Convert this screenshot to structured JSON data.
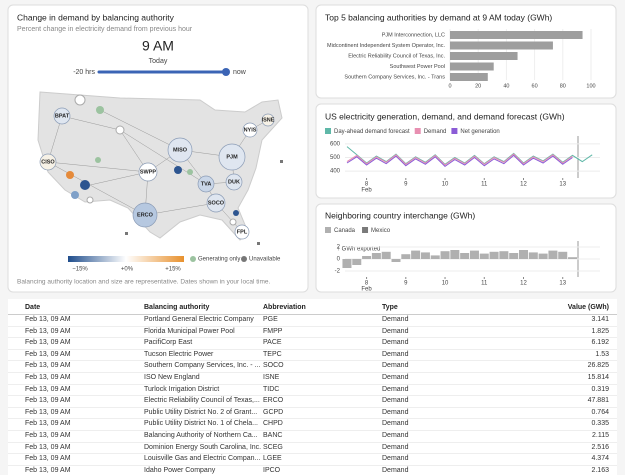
{
  "map_panel": {
    "title": "Change in demand by balancing authority",
    "subtitle": "Percent change in electricity demand from previous hour",
    "hour": "9 AM",
    "day": "Today",
    "slider_start": "-20 hrs",
    "slider_end": "now",
    "labels": [
      "BPAT",
      "CISO",
      "SWPP",
      "MISO",
      "PJM",
      "NYIS",
      "ISNE",
      "TVA",
      "DUK",
      "SOCO",
      "ERCO",
      "FPL"
    ],
    "legend": [
      "−15%",
      "+0%",
      "+15%",
      "Generating only",
      "Unavailable"
    ],
    "footnote": "Balancing authority location and size are representative. Dates shown in your local time."
  },
  "top5": {
    "title": "Top 5 balancing authorities by demand at 9 AM today (GWh)",
    "categories": [
      "PJM Interconnection, LLC",
      "Midcontinent Independent System Operator, Inc.",
      "Electric Reliability Council of Texas, Inc.",
      "Southwest Power Pool",
      "Southern Company Services, Inc. - Trans"
    ],
    "values": [
      94,
      73,
      47.9,
      31,
      26.8
    ],
    "color": "#9e9e9e",
    "xlim": [
      0,
      100
    ],
    "xticks": [
      0,
      20,
      40,
      60,
      80,
      100
    ]
  },
  "us_chart": {
    "type": "line",
    "title": "US electricity generation, demand, and demand forecast (GWh)",
    "xlim": [
      7.45,
      13.95
    ],
    "xticks": [
      8,
      9,
      10,
      11,
      12,
      13
    ],
    "month_label": "Feb",
    "ylim": [
      350,
      650
    ],
    "yticks": [
      400,
      500,
      600
    ],
    "x": [
      7.5,
      7.75,
      8,
      8.25,
      8.5,
      8.75,
      9,
      9.25,
      9.5,
      9.75,
      10,
      10.25,
      10.5,
      10.75,
      11,
      11.25,
      11.5,
      11.75,
      12,
      12.25,
      12.5,
      12.75,
      13,
      13.25,
      13.5,
      13.75
    ],
    "series": [
      {
        "name": "Day-ahead demand forecast",
        "color": "#5fb8a8",
        "values": [
          580,
          520,
          460,
          510,
          470,
          525,
          455,
          505,
          465,
          520,
          450,
          500,
          460,
          515,
          455,
          505,
          470,
          530,
          460,
          510,
          475,
          525,
          465,
          515,
          470,
          520
        ]
      },
      {
        "name": "Demand",
        "color": "#e88fb1",
        "values": [
          470,
          515,
          455,
          505,
          465,
          520,
          450,
          500,
          460,
          515,
          445,
          495,
          455,
          510,
          450,
          500,
          465,
          525,
          455,
          505,
          470,
          520,
          460,
          510,
          null,
          null
        ]
      },
      {
        "name": "Net generation",
        "color": "#8b5cd6",
        "values": [
          460,
          505,
          445,
          495,
          455,
          510,
          440,
          490,
          450,
          505,
          435,
          485,
          445,
          500,
          440,
          490,
          455,
          515,
          445,
          495,
          460,
          510,
          450,
          500,
          null,
          null
        ]
      }
    ]
  },
  "interchange": {
    "type": "bar",
    "title": "Neighboring country interchange (GWh)",
    "legend": [
      {
        "name": "Canada",
        "color": "#b0b0b0"
      },
      {
        "name": "Mexico",
        "color": "#7a7a7a"
      }
    ],
    "annotation": "↑ GWh exported",
    "xlim": [
      7.45,
      13.95
    ],
    "xticks": [
      8,
      9,
      10,
      11,
      12,
      13
    ],
    "month_label": "Feb",
    "ylim": [
      -3,
      3
    ],
    "yticks": [
      2,
      0,
      -2
    ],
    "x": [
      7.5,
      7.75,
      8,
      8.25,
      8.5,
      8.75,
      9,
      9.25,
      9.5,
      9.75,
      10,
      10.25,
      10.5,
      10.75,
      11,
      11.25,
      11.5,
      11.75,
      12,
      12.25,
      12.5,
      12.75,
      13,
      13.25,
      13.5,
      13.75
    ],
    "values": [
      -1.5,
      -1,
      0.5,
      1,
      1.2,
      -0.5,
      0.8,
      1.4,
      1.1,
      0.6,
      1.3,
      1.5,
      1,
      1.4,
      0.9,
      1.2,
      1.3,
      1,
      1.5,
      1.1,
      0.9,
      1.4,
      1.2,
      0.3,
      null,
      null
    ]
  },
  "table": {
    "columns": [
      "Date",
      "Balancing authority",
      "Abbreviation",
      "Type",
      "Value (GWh)"
    ],
    "rows": [
      [
        "Feb 13, 09 AM",
        "Portland General Electric Company",
        "PGE",
        "Demand",
        "3.141"
      ],
      [
        "Feb 13, 09 AM",
        "Florida Municipal Power Pool",
        "FMPP",
        "Demand",
        "1.825"
      ],
      [
        "Feb 13, 09 AM",
        "PacifiCorp East",
        "PACE",
        "Demand",
        "6.192"
      ],
      [
        "Feb 13, 09 AM",
        "Tucson Electric Power",
        "TEPC",
        "Demand",
        "1.53"
      ],
      [
        "Feb 13, 09 AM",
        "Southern Company Services, Inc. - ...",
        "SOCO",
        "Demand",
        "26.825"
      ],
      [
        "Feb 13, 09 AM",
        "ISO New England",
        "ISNE",
        "Demand",
        "15.814"
      ],
      [
        "Feb 13, 09 AM",
        "Turlock Irrigation District",
        "TIDC",
        "Demand",
        "0.319"
      ],
      [
        "Feb 13, 09 AM",
        "Electric Reliability Council of Texas,...",
        "ERCO",
        "Demand",
        "47.881"
      ],
      [
        "Feb 13, 09 AM",
        "Public Utility District No. 2 of Grant...",
        "GCPD",
        "Demand",
        "0.764"
      ],
      [
        "Feb 13, 09 AM",
        "Public Utility District No. 1 of Chela...",
        "CHPD",
        "Demand",
        "0.335"
      ],
      [
        "Feb 13, 09 AM",
        "Balancing Authority of Northern Ca...",
        "BANC",
        "Demand",
        "2.115"
      ],
      [
        "Feb 13, 09 AM",
        "Dominion Energy South Carolina, Inc.",
        "SCEG",
        "Demand",
        "2.516"
      ],
      [
        "Feb 13, 09 AM",
        "Louisville Gas and Electric Compan...",
        "LGEE",
        "Demand",
        "4.374"
      ],
      [
        "Feb 13, 09 AM",
        "Idaho Power Company",
        "IPCO",
        "Demand",
        "2.163"
      ]
    ]
  }
}
